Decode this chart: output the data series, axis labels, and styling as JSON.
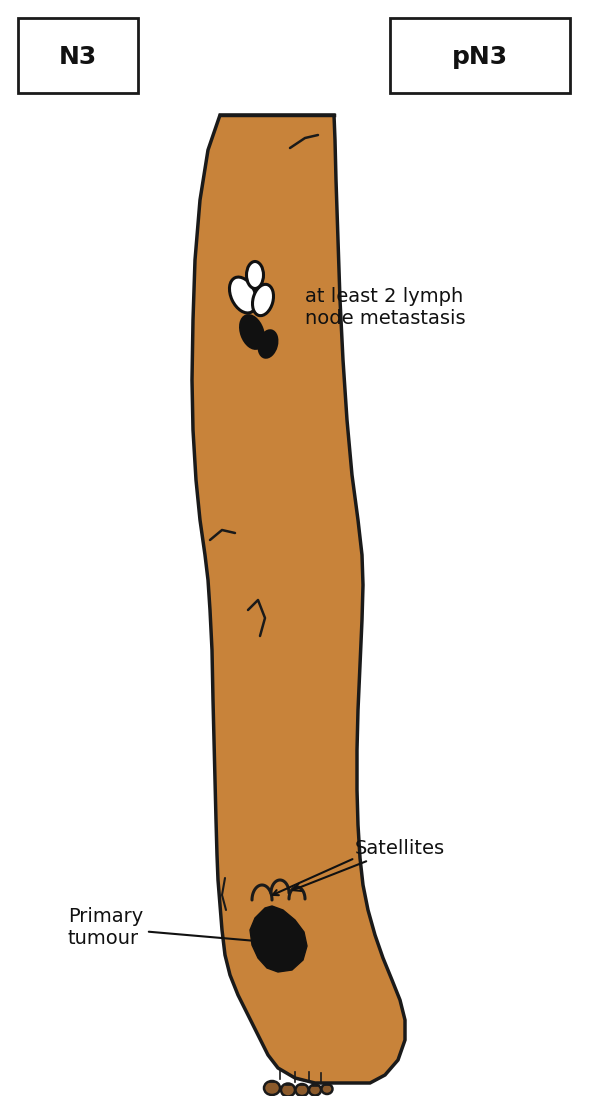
{
  "skin_color": "#C8833A",
  "skin_dark": "#8B5A2B",
  "outline_color": "#1a1a1a",
  "black_color": "#111111",
  "white_color": "#ffffff",
  "bg_color": "#ffffff",
  "label_N3": "N3",
  "label_pN3": "pN3",
  "label_lymph": "at least 2 lymph\nnode metastasis",
  "label_satellites": "Satellites",
  "label_tumour": "Primary\ntumour",
  "font_size_labels": 14,
  "font_size_boxes": 18
}
